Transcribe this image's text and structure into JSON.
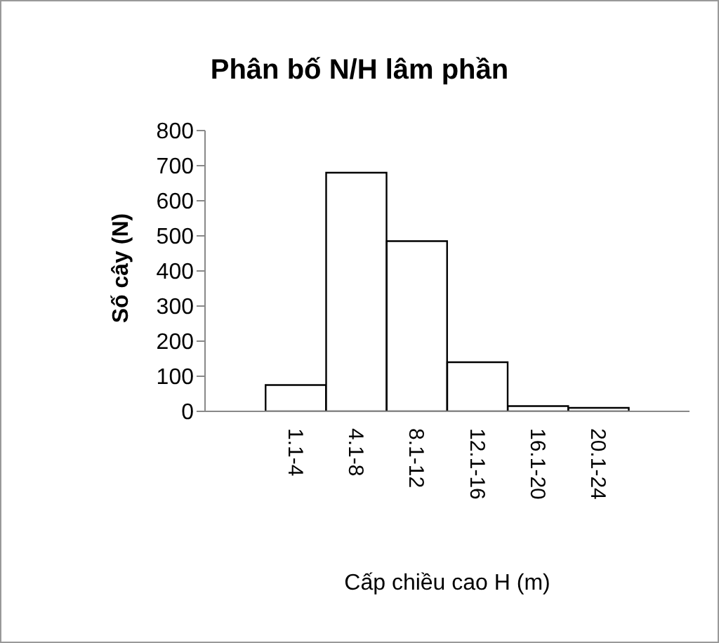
{
  "chart_data": {
    "type": "bar",
    "title": "Phân bố N/H lâm phần",
    "xlabel": "Cấp chiều cao H (m)",
    "ylabel": "Số cây (N)",
    "categories": [
      null,
      "1.1-4",
      "4.1-8",
      "8.1-12",
      "12.1-16",
      "16.1-20",
      "20.1-24",
      null
    ],
    "values": [
      null,
      75,
      680,
      485,
      140,
      15,
      10,
      null
    ],
    "color": "#ffffff",
    "ylim": [
      0,
      800
    ],
    "yticks": [
      0,
      100,
      200,
      300,
      400,
      500,
      600,
      700,
      800
    ]
  }
}
